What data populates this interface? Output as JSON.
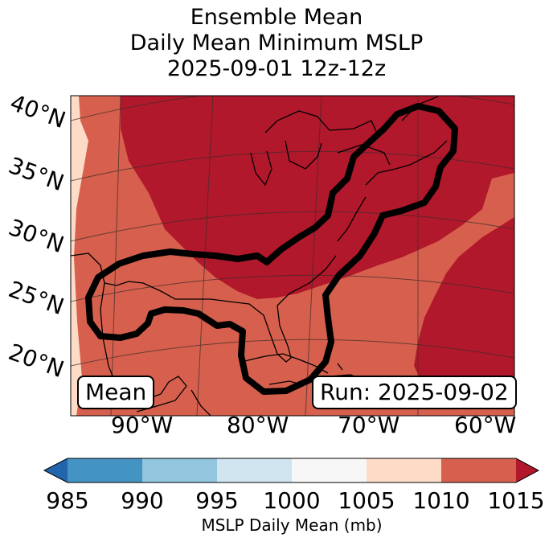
{
  "title": {
    "line1": "Ensemble Mean",
    "line2": "Daily Mean Minimum MSLP",
    "line3": "2025-09-01 12z-12z"
  },
  "map": {
    "lat_labels": [
      "40°N",
      "35°N",
      "30°N",
      "25°N",
      "20°N"
    ],
    "lon_labels": [
      "90°W",
      "80°W",
      "70°W",
      "60°W"
    ],
    "panel_label": "Mean",
    "run_label": "Run: 2025-09-02",
    "contour_color": "#000000"
  },
  "colorbar": {
    "label": "MSLP Daily Mean (mb)",
    "ticks": [
      "985",
      "990",
      "995",
      "1000",
      "1005",
      "1010",
      "1015"
    ],
    "colors": [
      "#4393c3",
      "#92c5de",
      "#d1e5f0",
      "#f7f7f7",
      "#fddbc7",
      "#d6604d"
    ],
    "under_color": "#2166ac",
    "over_color": "#b2182b",
    "extend": "both"
  }
}
